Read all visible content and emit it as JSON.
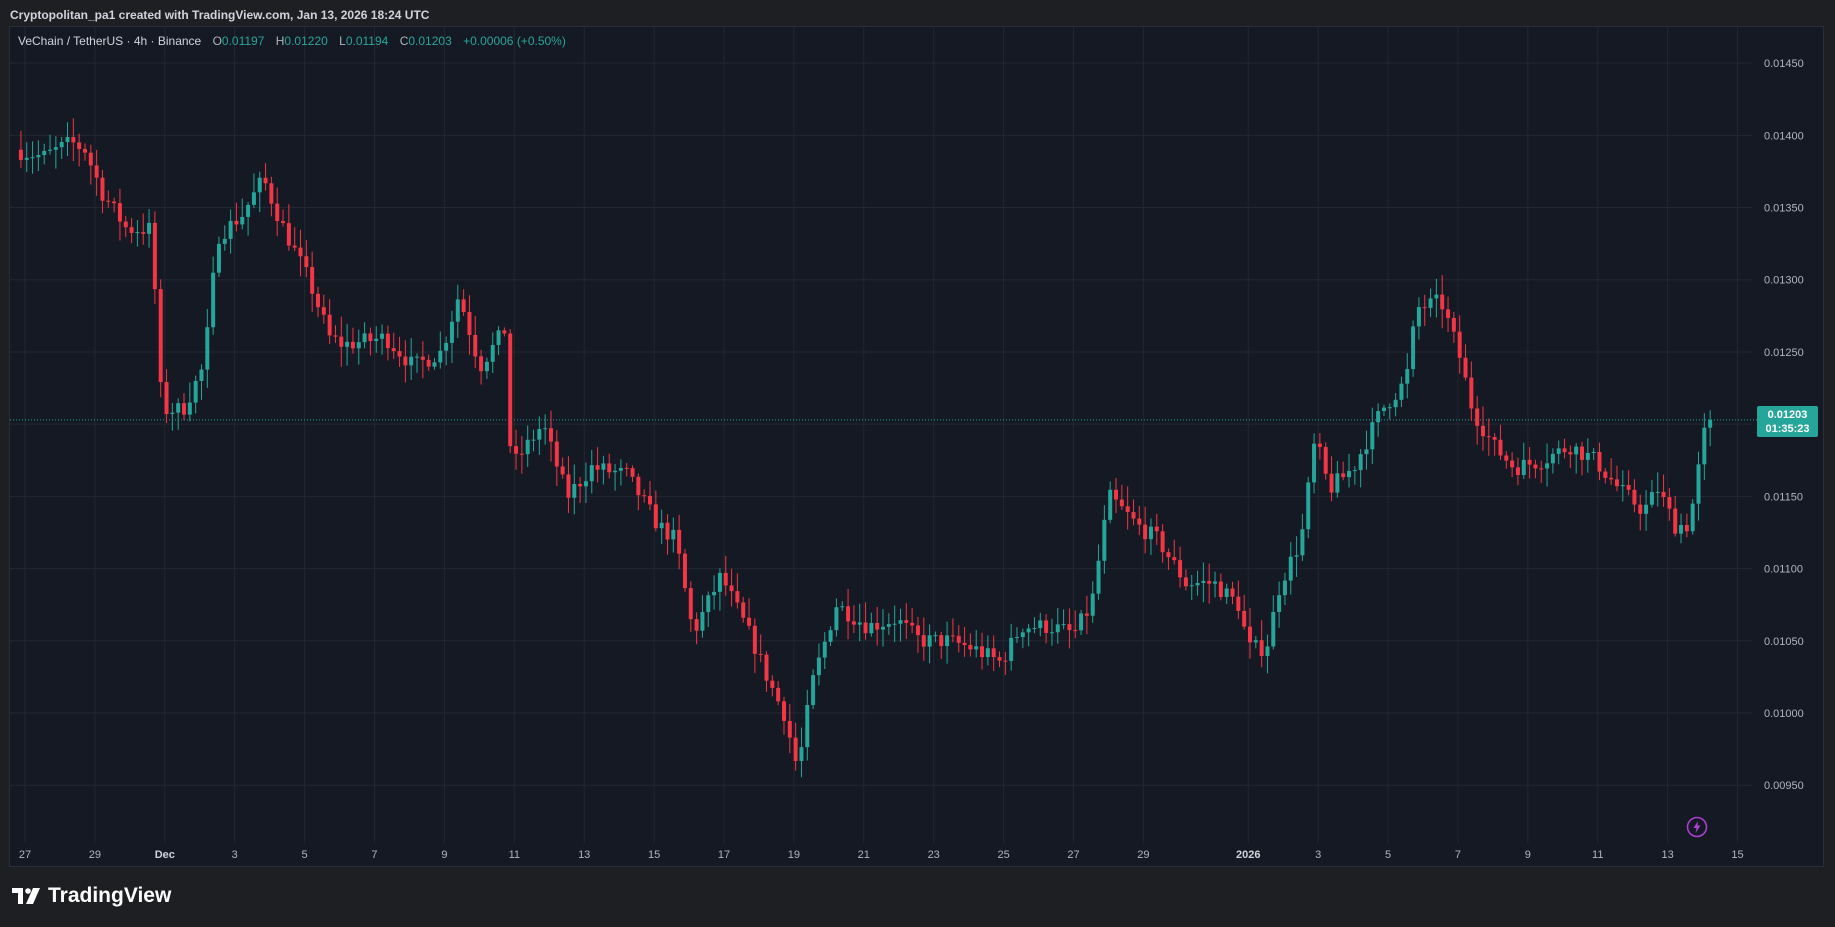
{
  "caption": "Cryptopolitan_pa1 created with TradingView.com, Jan 13, 2026 18:24 UTC",
  "legend": {
    "symbol": "VeChain / TetherUS · 4h · Binance",
    "o_label": "O",
    "o_value": "0.01197",
    "h_label": "H",
    "h_value": "0.01220",
    "l_label": "L",
    "l_value": "0.01194",
    "c_label": "C",
    "c_value": "0.01203",
    "change": "+0.00006 (+0.50%)"
  },
  "price_badge": {
    "price": "0.01203",
    "countdown": "01:35:23"
  },
  "logo_text": "TradingView",
  "icons": {
    "logo": "tradingview-logo-icon",
    "flash": "lightning-icon"
  },
  "colors": {
    "up": "#26a69a",
    "down": "#f23645",
    "background": "#151923",
    "grid": "#232733",
    "axis_text": "#b2b5be",
    "current_price": "#26a69a"
  },
  "chart_data": {
    "type": "candlestick",
    "title": "VeChain / TetherUS · 4h · Binance",
    "interval": "4h",
    "y_ticks": [
      0.0145,
      0.014,
      0.0135,
      0.013,
      0.0125,
      0.012,
      0.0115,
      0.011,
      0.0105,
      0.01,
      0.0095
    ],
    "y_tick_labels": [
      "0.01450",
      "0.01400",
      "0.01350",
      "0.01300",
      "0.01250",
      "",
      "0.01150",
      "0.01100",
      "0.01050",
      "0.01000",
      "0.00950"
    ],
    "ylim": [
      0.0091,
      0.01475
    ],
    "x_tick_labels": [
      "27",
      "29",
      "Dec",
      "3",
      "5",
      "7",
      "9",
      "11",
      "13",
      "15",
      "17",
      "19",
      "21",
      "23",
      "25",
      "27",
      "29",
      "2026",
      "3",
      "5",
      "7",
      "9",
      "11",
      "13",
      "15"
    ],
    "x_tick_days": [
      -4,
      -2,
      0,
      2,
      4,
      6,
      8,
      10,
      12,
      14,
      16,
      18,
      20,
      22,
      24,
      26,
      28,
      31,
      33,
      35,
      37,
      39,
      41,
      43,
      45
    ],
    "x_start_day": -4.2,
    "x_end_day": 45.6,
    "current_price": 0.01203,
    "grid": true,
    "anchors": [
      [
        -4.2,
        0.0139
      ],
      [
        -3.4,
        0.01385
      ],
      [
        -2.6,
        0.01395
      ],
      [
        -2.2,
        0.0139
      ],
      [
        -1.7,
        0.0136
      ],
      [
        -1.0,
        0.01335
      ],
      [
        -0.3,
        0.01335
      ],
      [
        0.0,
        0.0121
      ],
      [
        0.6,
        0.0121
      ],
      [
        1.2,
        0.0124
      ],
      [
        1.6,
        0.0133
      ],
      [
        2.3,
        0.01345
      ],
      [
        2.9,
        0.0137
      ],
      [
        3.4,
        0.0134
      ],
      [
        4.2,
        0.013
      ],
      [
        4.8,
        0.0126
      ],
      [
        5.2,
        0.01255
      ],
      [
        6.4,
        0.0126
      ],
      [
        7.2,
        0.0124
      ],
      [
        8.0,
        0.0125
      ],
      [
        8.5,
        0.0129
      ],
      [
        9.1,
        0.0124
      ],
      [
        9.8,
        0.01265
      ],
      [
        10.0,
        0.0117
      ],
      [
        10.9,
        0.012
      ],
      [
        11.6,
        0.0115
      ],
      [
        12.3,
        0.0117
      ],
      [
        13.3,
        0.01165
      ],
      [
        14.2,
        0.0113
      ],
      [
        14.7,
        0.0112
      ],
      [
        15.2,
        0.01055
      ],
      [
        16.0,
        0.01095
      ],
      [
        16.9,
        0.0105
      ],
      [
        17.4,
        0.0102
      ],
      [
        17.8,
        0.01
      ],
      [
        18.2,
        0.0096
      ],
      [
        18.6,
        0.0102
      ],
      [
        19.3,
        0.01075
      ],
      [
        20.2,
        0.0106
      ],
      [
        21.0,
        0.01065
      ],
      [
        21.7,
        0.0105
      ],
      [
        22.5,
        0.0105
      ],
      [
        23.2,
        0.01045
      ],
      [
        24.0,
        0.01035
      ],
      [
        24.6,
        0.0106
      ],
      [
        25.4,
        0.0106
      ],
      [
        26.1,
        0.01055
      ],
      [
        26.6,
        0.01075
      ],
      [
        27.1,
        0.0115
      ],
      [
        27.9,
        0.0113
      ],
      [
        28.5,
        0.0112
      ],
      [
        29.3,
        0.0109
      ],
      [
        30.1,
        0.0109
      ],
      [
        30.8,
        0.01075
      ],
      [
        31.1,
        0.01045
      ],
      [
        31.6,
        0.01045
      ],
      [
        32.0,
        0.0109
      ],
      [
        32.6,
        0.0112
      ],
      [
        33.0,
        0.0119
      ],
      [
        33.4,
        0.01155
      ],
      [
        34.1,
        0.0117
      ],
      [
        34.9,
        0.0121
      ],
      [
        35.6,
        0.0123
      ],
      [
        35.9,
        0.0128
      ],
      [
        36.6,
        0.01285
      ],
      [
        37.1,
        0.0125
      ],
      [
        37.5,
        0.0121
      ],
      [
        38.1,
        0.01185
      ],
      [
        38.7,
        0.0117
      ],
      [
        39.5,
        0.01175
      ],
      [
        40.3,
        0.01185
      ],
      [
        41.0,
        0.01175
      ],
      [
        41.7,
        0.01155
      ],
      [
        42.4,
        0.0114
      ],
      [
        42.8,
        0.01155
      ],
      [
        43.3,
        0.0113
      ],
      [
        43.7,
        0.0113
      ],
      [
        44.2,
        0.01203
      ]
    ]
  }
}
